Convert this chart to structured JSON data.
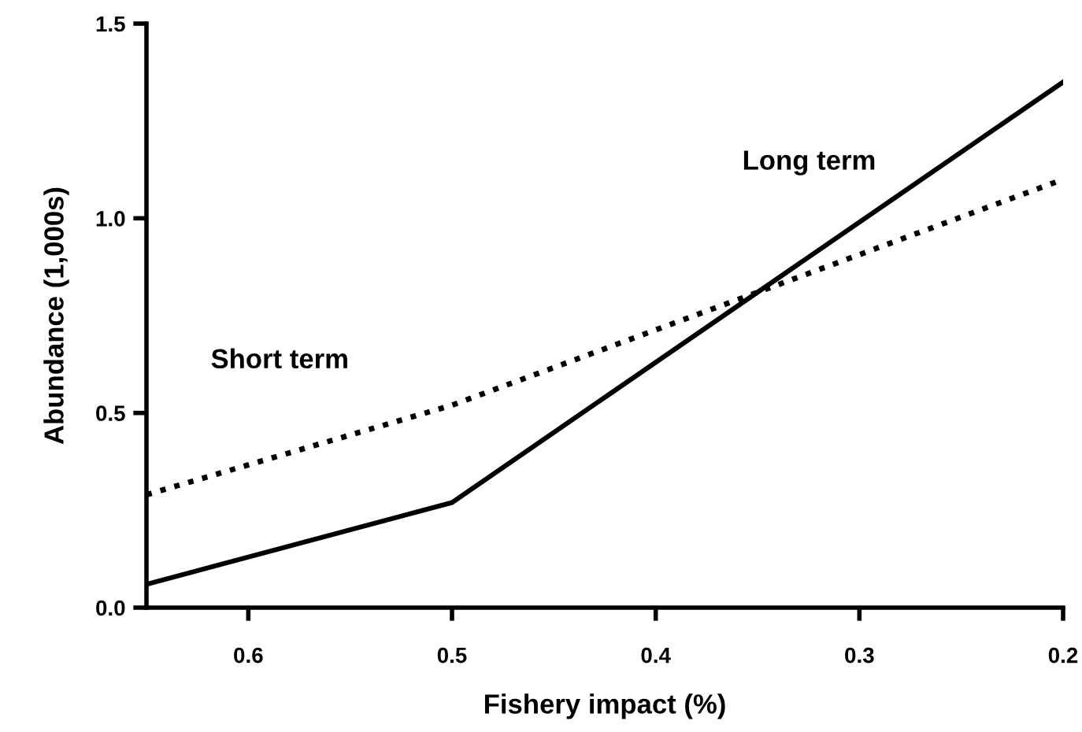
{
  "chart_data": {
    "type": "line",
    "xlabel": "Fishery impact (%)",
    "ylabel": "Abundance (1,000s)",
    "x": [
      0.65,
      0.5,
      0.2
    ],
    "series": [
      {
        "name": "Short term",
        "color": "#000000",
        "line_style": "dotted",
        "values": [
          0.29,
          0.52,
          1.1
        ]
      },
      {
        "name": "Long term",
        "color": "#000000",
        "line_style": "solid",
        "values": [
          0.06,
          0.27,
          1.35
        ]
      }
    ],
    "xlim": [
      0.65,
      0.2
    ],
    "xticks": [
      0.6,
      0.5,
      0.4,
      0.3,
      0.2
    ],
    "ylim": [
      0,
      1.5
    ],
    "yticks": [
      {
        "value": 0,
        "label": "0.0"
      },
      0.5,
      {
        "value": 1,
        "label": "1.0"
      },
      1.5
    ],
    "grid": false,
    "legend": false,
    "marker": "none"
  }
}
